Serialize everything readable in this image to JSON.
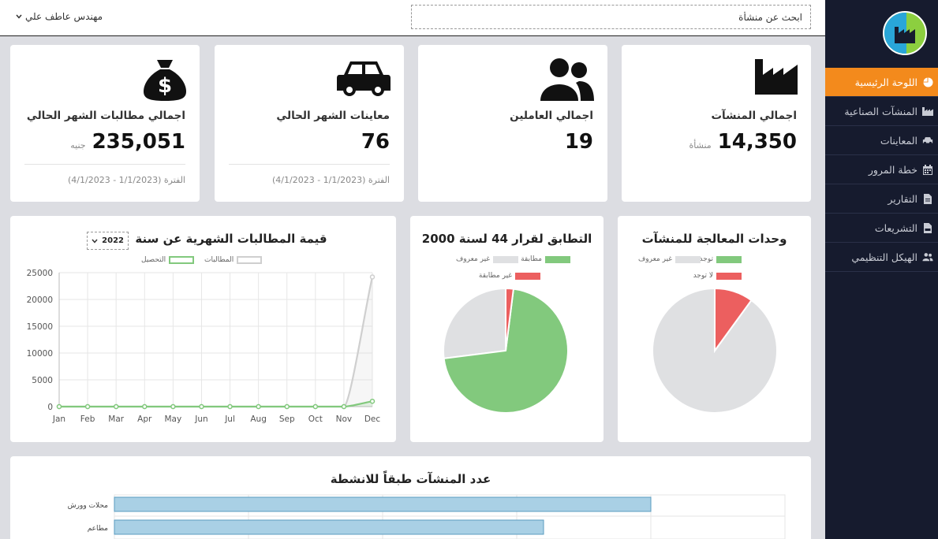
{
  "sidebar": {
    "items": [
      {
        "label": "اللوحة الرئيسية",
        "icon": "pie-chart-icon",
        "active": true
      },
      {
        "label": "المنشآت الصناعية",
        "icon": "factory-icon",
        "active": false
      },
      {
        "label": "المعاينات",
        "icon": "car-icon",
        "active": false
      },
      {
        "label": "خطة المرور",
        "icon": "calendar-icon",
        "active": false
      },
      {
        "label": "التقارير",
        "icon": "file-icon",
        "active": false
      },
      {
        "label": "التشريعات",
        "icon": "pdf-file-icon",
        "active": false
      },
      {
        "label": "الهيكل التنظيمي",
        "icon": "users-icon",
        "active": false
      }
    ]
  },
  "header": {
    "search_placeholder": "ابحث عن منشأة",
    "user_name": "مهندس عاطف علي"
  },
  "stats": [
    {
      "label": "اجمالي المنشآت",
      "value": "14,350",
      "unit": "منشأة",
      "icon": "factory-icon",
      "period": ""
    },
    {
      "label": "اجمالي العاملين",
      "value": "19",
      "unit": "",
      "icon": "users-icon",
      "period": ""
    },
    {
      "label": "معاينات الشهر الحالي",
      "value": "76",
      "unit": "",
      "icon": "car-icon",
      "period": "الفترة (1/1/2023 - 4/1/2023)"
    },
    {
      "label": "اجمالي مطالبات الشهر الحالي",
      "value": "235,051",
      "unit": "جنيه",
      "icon": "money-bag-icon",
      "period": "الفترة (1/1/2023 - 4/1/2023)"
    }
  ],
  "colors": {
    "accent": "#f38a1c",
    "sidebar_bg": "#161b2e",
    "green": "#82c97d",
    "gray": "#dfe0e2",
    "red": "#ec5f5f",
    "blue": "#a9d0e5"
  },
  "chart_data": [
    {
      "type": "pie",
      "title": "وحدات المعالجة للمنشآت",
      "legend": [
        "توجد",
        "غير معروف",
        "لا توجد"
      ],
      "labels": [
        "غير معروف",
        "لا توجد",
        "توجد"
      ],
      "values": [
        90,
        10,
        0
      ],
      "colors": [
        "#dfe0e2",
        "#ec5f5f",
        "#82c97d"
      ]
    },
    {
      "type": "pie",
      "title": "التطابق لقرار 44 لسنة 2000",
      "legend": [
        "مطابقة",
        "غير معروف",
        "غير مطابقة"
      ],
      "labels": [
        "غير معروف",
        "مطابقة",
        "غير مطابقة"
      ],
      "values": [
        27,
        71,
        2
      ],
      "colors": [
        "#dfe0e2",
        "#82c97d",
        "#ec5f5f"
      ]
    },
    {
      "type": "line",
      "title": "قيمة المطالبات الشهرية عن سنة",
      "year_select": "2022",
      "categories": [
        "Jan",
        "Feb",
        "Mar",
        "Apr",
        "May",
        "Jun",
        "Jul",
        "Aug",
        "Sep",
        "Oct",
        "Nov",
        "Dec"
      ],
      "yticks": [
        "0",
        "5000",
        "10000",
        "15000",
        "20000",
        "25000"
      ],
      "ylim": [
        0,
        25000
      ],
      "series": [
        {
          "name": "المطالبات",
          "color": "#cfcfcf",
          "values": [
            0,
            0,
            0,
            0,
            0,
            0,
            0,
            0,
            0,
            0,
            0,
            24200
          ]
        },
        {
          "name": "التحصيل",
          "color": "#82c97d",
          "values": [
            0,
            0,
            0,
            0,
            0,
            0,
            0,
            0,
            0,
            0,
            0,
            1000
          ]
        }
      ]
    },
    {
      "type": "bar",
      "orientation": "horizontal",
      "title": "عدد المنشآت طبقاً للانشطة",
      "categories": [
        "محلات وورش",
        "مطاعم"
      ],
      "values": [
        4000,
        3200
      ],
      "xlim": [
        0,
        5000
      ]
    }
  ]
}
